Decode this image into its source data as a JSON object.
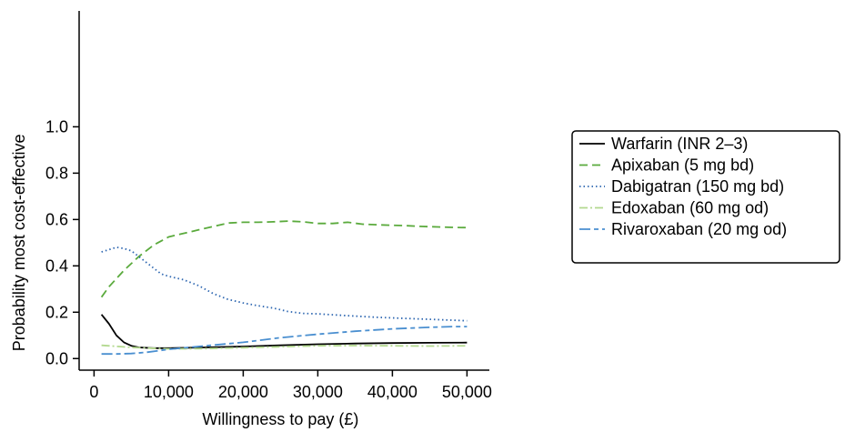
{
  "chart_data": {
    "type": "line",
    "title": "",
    "xlabel": "Willingness to pay (£)",
    "ylabel": "Probability most cost-effective",
    "xlim": [
      -2000,
      53000
    ],
    "ylim": [
      -0.05,
      1.5
    ],
    "xticks": [
      0,
      10000,
      20000,
      30000,
      40000,
      50000
    ],
    "xtick_labels": [
      "0",
      "10,000",
      "20,000",
      "30,000",
      "40,000",
      "50,000"
    ],
    "yticks": [
      0.0,
      0.2,
      0.4,
      0.6,
      0.8,
      1.0
    ],
    "ytick_labels": [
      "0.0",
      "0.2",
      "0.4",
      "0.6",
      "0.8",
      "1.0"
    ],
    "grid": false,
    "legend_position": "right",
    "series": [
      {
        "name": "Warfarin (INR 2–3)",
        "color": "#000000",
        "dash": "solid",
        "x": [
          1000,
          2000,
          3000,
          4000,
          5000,
          6000,
          8000,
          10000,
          15000,
          20000,
          25000,
          30000,
          35000,
          40000,
          45000,
          50000
        ],
        "y": [
          0.19,
          0.15,
          0.1,
          0.07,
          0.055,
          0.048,
          0.045,
          0.045,
          0.048,
          0.052,
          0.057,
          0.062,
          0.065,
          0.067,
          0.068,
          0.069
        ]
      },
      {
        "name": "Apixaban (5 mg bd)",
        "color": "#5aaa3c",
        "dash": "long",
        "x": [
          1000,
          2000,
          4000,
          6000,
          8000,
          10000,
          12000,
          14000,
          16000,
          18000,
          20000,
          22000,
          24000,
          26000,
          28000,
          30000,
          32000,
          34000,
          36000,
          38000,
          40000,
          42000,
          44000,
          46000,
          48000,
          50000
        ],
        "y": [
          0.265,
          0.31,
          0.38,
          0.44,
          0.49,
          0.525,
          0.54,
          0.555,
          0.57,
          0.585,
          0.588,
          0.588,
          0.59,
          0.593,
          0.59,
          0.583,
          0.583,
          0.588,
          0.58,
          0.577,
          0.575,
          0.573,
          0.57,
          0.568,
          0.566,
          0.565
        ]
      },
      {
        "name": "Dabigatran (150 mg bd)",
        "color": "#2e67b1",
        "dash": "dotted",
        "x": [
          1000,
          2000,
          3000,
          4000,
          5000,
          6000,
          7000,
          8000,
          9000,
          10000,
          12000,
          14000,
          16000,
          18000,
          20000,
          22000,
          24000,
          26000,
          28000,
          30000,
          34000,
          38000,
          42000,
          46000,
          50000
        ],
        "y": [
          0.46,
          0.47,
          0.48,
          0.475,
          0.465,
          0.44,
          0.415,
          0.39,
          0.365,
          0.355,
          0.34,
          0.315,
          0.28,
          0.255,
          0.24,
          0.228,
          0.218,
          0.203,
          0.195,
          0.193,
          0.185,
          0.178,
          0.173,
          0.168,
          0.163
        ]
      },
      {
        "name": "Edoxaban (60 mg od)",
        "color": "#b3d98f",
        "dash": "dashdot",
        "x": [
          1000,
          5000,
          10000,
          15000,
          20000,
          25000,
          30000,
          35000,
          40000,
          45000,
          50000
        ],
        "y": [
          0.057,
          0.048,
          0.042,
          0.043,
          0.047,
          0.051,
          0.055,
          0.056,
          0.055,
          0.054,
          0.055
        ]
      },
      {
        "name": "Rivaroxaban (20 mg od)",
        "color": "#4a8fd0",
        "dash": "longshort",
        "x": [
          1000,
          3000,
          5000,
          7000,
          10000,
          15000,
          20000,
          25000,
          30000,
          35000,
          40000,
          45000,
          48000,
          50000
        ],
        "y": [
          0.02,
          0.02,
          0.022,
          0.027,
          0.04,
          0.055,
          0.07,
          0.09,
          0.105,
          0.118,
          0.128,
          0.135,
          0.138,
          0.138
        ]
      }
    ]
  }
}
